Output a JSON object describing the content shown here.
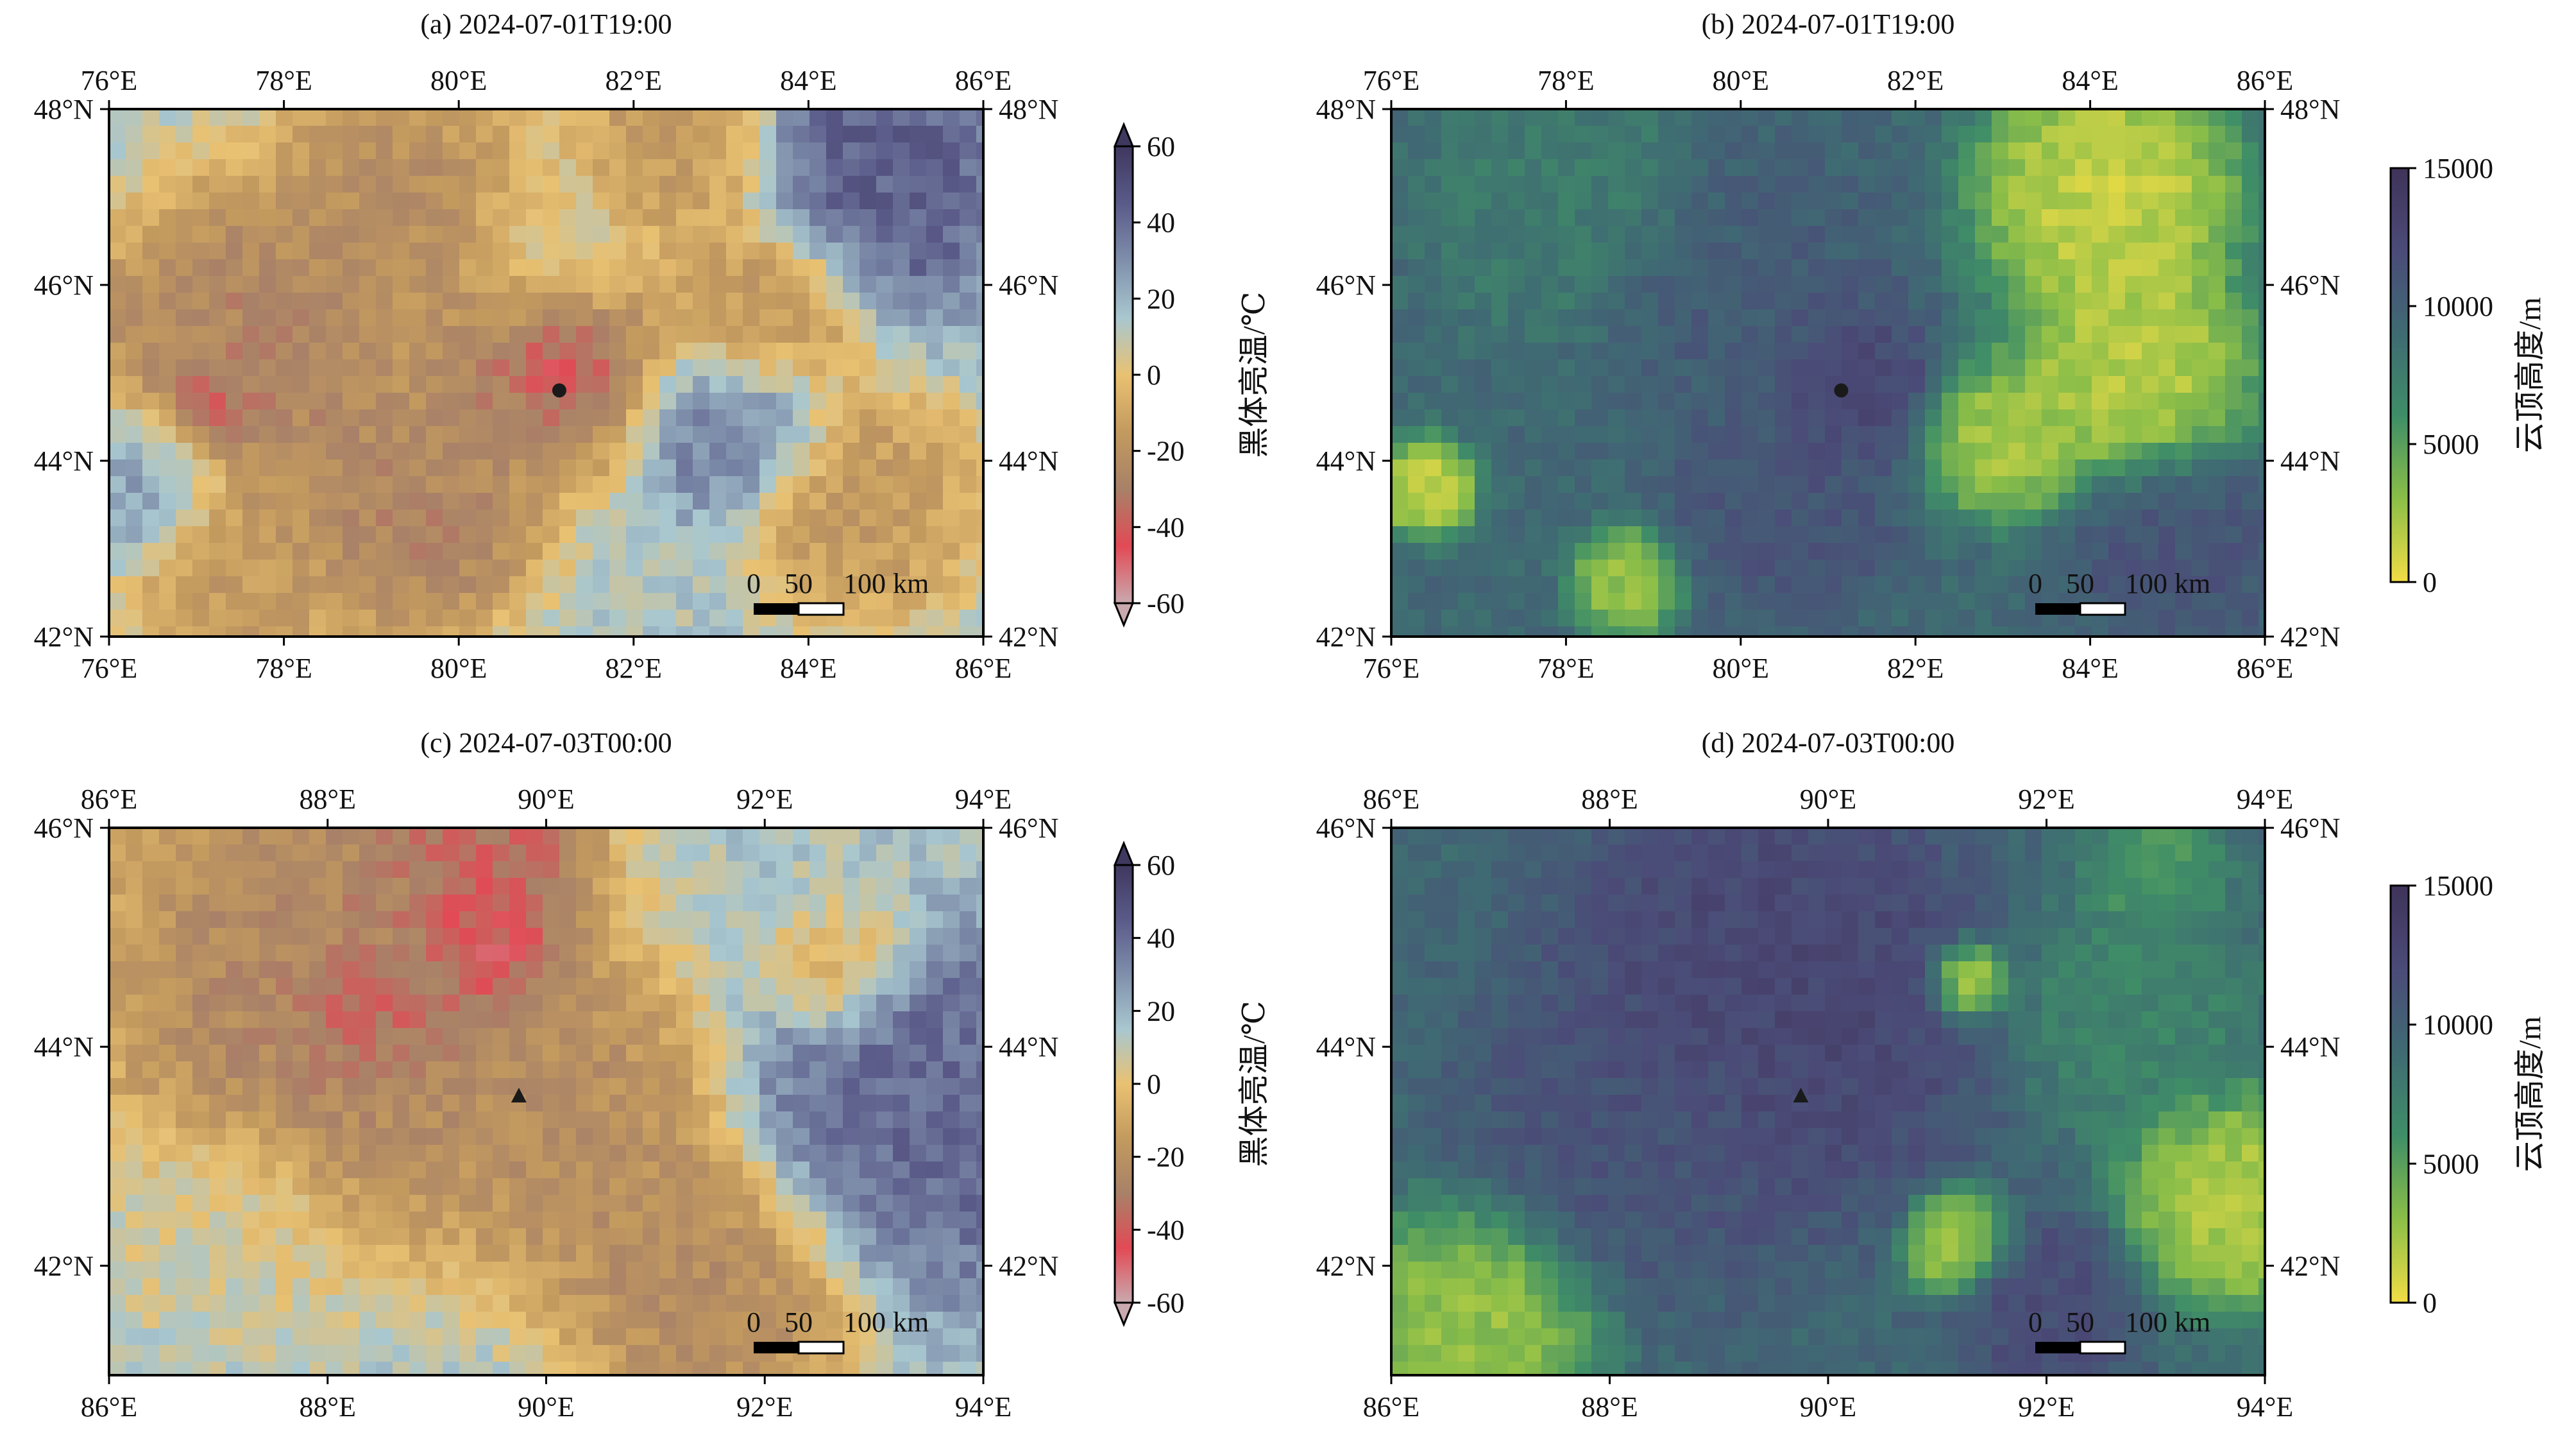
{
  "panels": [
    {
      "id": "a",
      "title": "(a) 2024-07-01T19:00",
      "variable": "brightness-temperature",
      "x_ticks": [
        "76°E",
        "78°E",
        "80°E",
        "82°E",
        "84°E",
        "86°E"
      ],
      "y_ticks": [
        "48°N",
        "46°N",
        "44°N",
        "42°N"
      ],
      "lon_range": [
        76,
        86
      ],
      "lat_range": [
        42,
        48
      ],
      "marker": {
        "shape": "circle",
        "lon": 81.15,
        "lat": 44.8
      },
      "scalebar": {
        "labels": [
          "0",
          "50",
          "100 km"
        ]
      },
      "colorbar": {
        "label": "黑体亮温/℃",
        "ticks": [
          "60",
          "40",
          "20",
          "0",
          "-20",
          "-40",
          "-60"
        ],
        "extend": "both"
      },
      "blobs": [
        {
          "lon": 77.6,
          "lat": 45.2,
          "r": 1.6,
          "v": 0.25
        },
        {
          "lon": 79.3,
          "lat": 46.8,
          "r": 1.3,
          "v": 0.3
        },
        {
          "lon": 81.0,
          "lat": 45.2,
          "r": 1.1,
          "v": 0.2
        },
        {
          "lon": 81.2,
          "lat": 45.1,
          "r": 0.45,
          "v": 0.05
        },
        {
          "lon": 77.2,
          "lat": 44.7,
          "r": 0.5,
          "v": 0.12
        },
        {
          "lon": 79.5,
          "lat": 43.4,
          "r": 1.2,
          "v": 0.25
        },
        {
          "lon": 83.5,
          "lat": 45.7,
          "r": 1.0,
          "v": 0.33
        },
        {
          "lon": 84.6,
          "lat": 43.5,
          "r": 1.1,
          "v": 0.35
        },
        {
          "lon": 77.5,
          "lat": 42.6,
          "r": 1.0,
          "v": 0.35
        },
        {
          "lon": 82.5,
          "lat": 47.6,
          "r": 1.0,
          "v": 0.35
        },
        {
          "lon": 84.8,
          "lat": 47.2,
          "r": 1.3,
          "v": 0.88
        },
        {
          "lon": 83.2,
          "lat": 44.4,
          "r": 0.9,
          "v": 0.8
        },
        {
          "lon": 76.4,
          "lat": 43.8,
          "r": 0.8,
          "v": 0.75
        },
        {
          "lon": 81.0,
          "lat": 46.3,
          "r": 0.9,
          "v": 0.55
        }
      ]
    },
    {
      "id": "b",
      "title": "(b) 2024-07-01T19:00",
      "variable": "cloud-top-height",
      "x_ticks": [
        "76°E",
        "78°E",
        "80°E",
        "82°E",
        "84°E",
        "86°E"
      ],
      "y_ticks": [
        "48°N",
        "46°N",
        "44°N",
        "42°N"
      ],
      "lon_range": [
        76,
        86
      ],
      "lat_range": [
        42,
        48
      ],
      "marker": {
        "shape": "circle",
        "lon": 81.15,
        "lat": 44.8
      },
      "scalebar": {
        "labels": [
          "0",
          "50",
          "100 km"
        ]
      },
      "colorbar": {
        "label": "云顶高度/m",
        "ticks": [
          "15000",
          "10000",
          "5000",
          "0"
        ],
        "extend": "neither"
      },
      "blobs": [
        {
          "lon": 84.2,
          "lat": 47.0,
          "r": 1.2,
          "v": 0.05
        },
        {
          "lon": 84.5,
          "lat": 45.0,
          "r": 1.1,
          "v": 0.08
        },
        {
          "lon": 83.0,
          "lat": 44.2,
          "r": 0.7,
          "v": 0.12
        },
        {
          "lon": 76.4,
          "lat": 43.7,
          "r": 0.45,
          "v": 0.05
        },
        {
          "lon": 78.7,
          "lat": 42.6,
          "r": 0.5,
          "v": 0.15
        },
        {
          "lon": 81.2,
          "lat": 44.9,
          "r": 0.8,
          "v": 0.85
        },
        {
          "lon": 80.0,
          "lat": 45.8,
          "r": 1.4,
          "v": 0.7
        },
        {
          "lon": 78.0,
          "lat": 47.0,
          "r": 1.3,
          "v": 0.5
        },
        {
          "lon": 85.0,
          "lat": 43.0,
          "r": 1.0,
          "v": 0.75
        },
        {
          "lon": 80.5,
          "lat": 43.4,
          "r": 1.0,
          "v": 0.75
        }
      ]
    },
    {
      "id": "c",
      "title": "(c) 2024-07-03T00:00",
      "variable": "brightness-temperature",
      "x_ticks": [
        "86°E",
        "88°E",
        "90°E",
        "92°E",
        "94°E"
      ],
      "y_ticks": [
        "46°N",
        "44°N",
        "42°N"
      ],
      "lon_range": [
        86,
        94
      ],
      "lat_range": [
        41,
        46
      ],
      "marker": {
        "shape": "triangle",
        "lon": 89.75,
        "lat": 43.55
      },
      "scalebar": {
        "labels": [
          "0",
          "50",
          "100 km"
        ]
      },
      "colorbar": {
        "label": "黑体亮温/℃",
        "ticks": [
          "60",
          "40",
          "20",
          "0",
          "-20",
          "-40",
          "-60"
        ],
        "extend": "both"
      },
      "blobs": [
        {
          "lon": 88.2,
          "lat": 44.6,
          "r": 1.9,
          "v": 0.25
        },
        {
          "lon": 89.4,
          "lat": 44.9,
          "r": 0.6,
          "v": 0.05
        },
        {
          "lon": 88.4,
          "lat": 44.3,
          "r": 0.5,
          "v": 0.1
        },
        {
          "lon": 89.4,
          "lat": 45.7,
          "r": 0.8,
          "v": 0.15
        },
        {
          "lon": 90.3,
          "lat": 43.2,
          "r": 1.2,
          "v": 0.3
        },
        {
          "lon": 91.5,
          "lat": 41.8,
          "r": 1.1,
          "v": 0.28
        },
        {
          "lon": 92.6,
          "lat": 44.8,
          "r": 0.6,
          "v": 0.38
        },
        {
          "lon": 93.4,
          "lat": 43.4,
          "r": 1.4,
          "v": 0.85
        },
        {
          "lon": 92.4,
          "lat": 45.6,
          "r": 0.9,
          "v": 0.62
        },
        {
          "lon": 87.0,
          "lat": 42.3,
          "r": 0.9,
          "v": 0.55
        }
      ]
    },
    {
      "id": "d",
      "title": "(d) 2024-07-03T00:00",
      "variable": "cloud-top-height",
      "x_ticks": [
        "86°E",
        "88°E",
        "90°E",
        "92°E",
        "94°E"
      ],
      "y_ticks": [
        "46°N",
        "44°N",
        "42°N"
      ],
      "lon_range": [
        86,
        94
      ],
      "lat_range": [
        41,
        46
      ],
      "marker": {
        "shape": "triangle",
        "lon": 89.75,
        "lat": 43.55
      },
      "scalebar": {
        "labels": [
          "0",
          "50",
          "100 km"
        ]
      },
      "colorbar": {
        "label": "云顶高度/m",
        "ticks": [
          "15000",
          "10000",
          "5000",
          "0"
        ],
        "extend": "neither"
      },
      "blobs": [
        {
          "lon": 89.5,
          "lat": 44.4,
          "r": 1.6,
          "v": 0.85
        },
        {
          "lon": 88.2,
          "lat": 43.2,
          "r": 1.3,
          "v": 0.75
        },
        {
          "lon": 92.8,
          "lat": 44.3,
          "r": 0.9,
          "v": 0.45
        },
        {
          "lon": 93.7,
          "lat": 42.6,
          "r": 0.8,
          "v": 0.1
        },
        {
          "lon": 86.8,
          "lat": 41.5,
          "r": 0.9,
          "v": 0.15
        },
        {
          "lon": 91.2,
          "lat": 42.2,
          "r": 0.4,
          "v": 0.1
        },
        {
          "lon": 91.3,
          "lat": 44.6,
          "r": 0.3,
          "v": 0.05
        },
        {
          "lon": 93.0,
          "lat": 45.6,
          "r": 0.5,
          "v": 0.35
        },
        {
          "lon": 92.0,
          "lat": 41.6,
          "r": 0.7,
          "v": 0.8
        }
      ]
    }
  ],
  "colormaps": {
    "brightness-temperature": [
      "#c9a9ae",
      "#e24a55",
      "#a88168",
      "#c39a5e",
      "#e9c172",
      "#a8c7cf",
      "#7f8fab",
      "#5a5a89",
      "#3f385f"
    ],
    "cloud-top-height": [
      "#f2dd46",
      "#8bbe48",
      "#3f8e67",
      "#3f6b73",
      "#4b4b78",
      "#3f3359"
    ]
  },
  "colors": {
    "frame": "#000000",
    "marker": "#1a1a1a"
  }
}
